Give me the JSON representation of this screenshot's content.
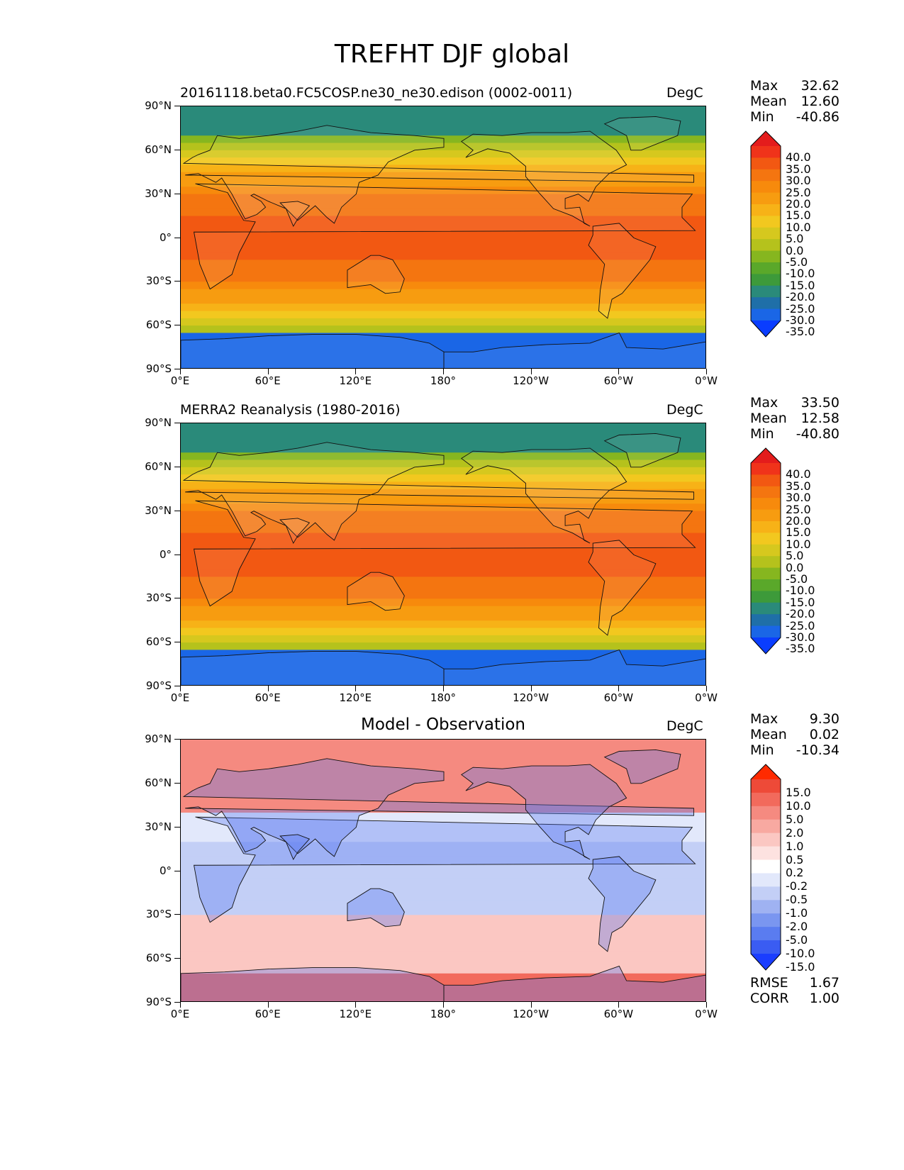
{
  "figure_title": "TREFHT DJF global",
  "lat_ticks": [
    "90°N",
    "60°N",
    "30°N",
    "0°",
    "30°S",
    "60°S",
    "90°S"
  ],
  "lon_ticks": [
    "0°E",
    "60°E",
    "120°E",
    "180°",
    "120°W",
    "60°W",
    "0°W"
  ],
  "panels": [
    {
      "title": "20161118.beta0.FC5COSP.ne30_ne30.edison (0002-0011)",
      "title_centered": false,
      "units": "DegC",
      "stats": [
        {
          "label": "Max",
          "value": "32.62"
        },
        {
          "label": "Mean",
          "value": "12.60"
        },
        {
          "label": "Min",
          "value": "-40.86"
        }
      ],
      "colorbar_labels": [
        "40.0",
        "35.0",
        "30.0",
        "25.0",
        "20.0",
        "15.0",
        "10.0",
        "5.0",
        "0.0",
        "-5.0",
        "-10.0",
        "-15.0",
        "-20.0",
        "-25.0",
        "-30.0",
        "-35.0"
      ],
      "colormap": [
        "#0a3dff",
        "#1a66e6",
        "#1f6fa8",
        "#2a8a7a",
        "#3d9a3a",
        "#5aa82a",
        "#86b61f",
        "#b5c21c",
        "#d6c81e",
        "#f2c81f",
        "#f7b217",
        "#f79c10",
        "#f78a0c",
        "#f47510",
        "#f25812",
        "#f0331a",
        "#e41c1c"
      ]
    },
    {
      "title": "MERRA2 Reanalysis (1980-2016)",
      "title_centered": false,
      "units": "DegC",
      "stats": [
        {
          "label": "Max",
          "value": "33.50"
        },
        {
          "label": "Mean",
          "value": "12.58"
        },
        {
          "label": "Min",
          "value": "-40.80"
        }
      ],
      "colorbar_labels": [
        "40.0",
        "35.0",
        "30.0",
        "25.0",
        "20.0",
        "15.0",
        "10.0",
        "5.0",
        "0.0",
        "-5.0",
        "-10.0",
        "-15.0",
        "-20.0",
        "-25.0",
        "-30.0",
        "-35.0"
      ],
      "colormap": [
        "#0a3dff",
        "#1a66e6",
        "#1f6fa8",
        "#2a8a7a",
        "#3d9a3a",
        "#5aa82a",
        "#86b61f",
        "#b5c21c",
        "#d6c81e",
        "#f2c81f",
        "#f7b217",
        "#f79c10",
        "#f78a0c",
        "#f47510",
        "#f25812",
        "#f0331a",
        "#e41c1c"
      ]
    },
    {
      "title": "Model - Observation",
      "title_centered": true,
      "units": "DegC",
      "stats": [
        {
          "label": "Max",
          "value": "9.30"
        },
        {
          "label": "Mean",
          "value": "0.02"
        },
        {
          "label": "Min",
          "value": "-10.34"
        }
      ],
      "colorbar_labels": [
        "15.0",
        "10.0",
        "5.0",
        "2.0",
        "1.0",
        "0.5",
        "0.2",
        "-0.2",
        "-0.5",
        "-1.0",
        "-2.0",
        "-5.0",
        "-10.0",
        "-15.0"
      ],
      "colormap": [
        "#1a3dff",
        "#3a5cf2",
        "#5a7cf0",
        "#7a96f0",
        "#9fb2f2",
        "#c3cff6",
        "#e2e8fb",
        "#ffffff",
        "#fde2e0",
        "#fbc7c2",
        "#f8a9a1",
        "#f58a80",
        "#f26a5c",
        "#ee4a38",
        "#ff2a00"
      ],
      "rmse": [
        {
          "label": "RMSE",
          "value": "1.67"
        },
        {
          "label": "CORR",
          "value": "1.00"
        }
      ]
    }
  ]
}
